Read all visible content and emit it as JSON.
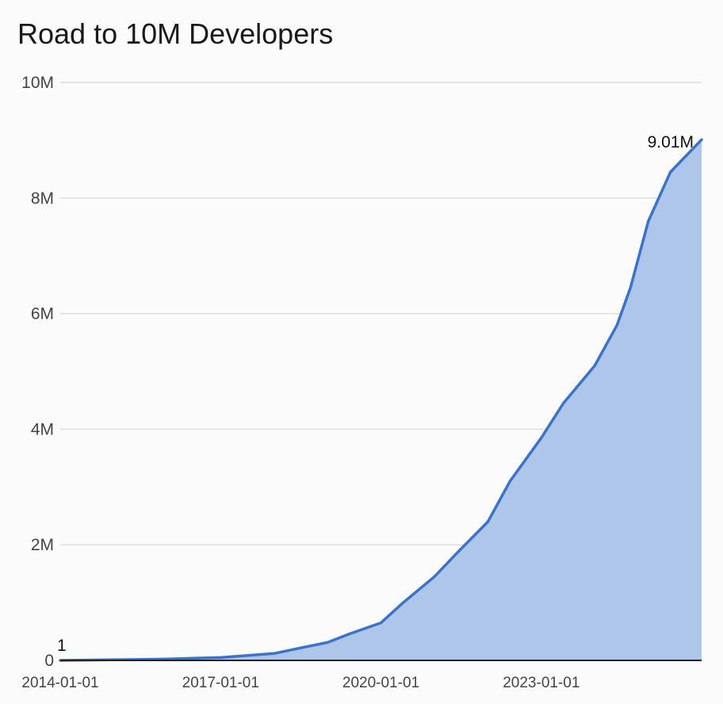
{
  "chart_data": {
    "type": "area",
    "title": "Road to 10M Developers",
    "xlabel": "",
    "ylabel": "",
    "x_axis": {
      "type": "date",
      "min": "2014-01-01",
      "max": "2025-12-31",
      "ticks": [
        "2014-01-01",
        "2017-01-01",
        "2020-01-01",
        "2023-01-01"
      ]
    },
    "y_axis": {
      "min": 0,
      "max": 10000000,
      "ticks": [
        0,
        2000000,
        4000000,
        6000000,
        8000000,
        10000000
      ],
      "tick_labels": [
        "0",
        "2M",
        "4M",
        "6M",
        "8M",
        "10M"
      ]
    },
    "grid": true,
    "legend": "none",
    "colors": {
      "line": "#3a73c8",
      "fill": "#aec6ea",
      "gridline": "#dedede",
      "baseline": "#222222"
    },
    "series": [
      {
        "points": [
          [
            "2014-01-01",
            1
          ],
          [
            "2015-06-01",
            15000
          ],
          [
            "2016-01-01",
            25000
          ],
          [
            "2016-06-01",
            35000
          ],
          [
            "2017-01-01",
            50000
          ],
          [
            "2017-06-01",
            80000
          ],
          [
            "2018-01-01",
            120000
          ],
          [
            "2018-06-01",
            200000
          ],
          [
            "2019-01-01",
            310000
          ],
          [
            "2019-06-01",
            460000
          ],
          [
            "2020-01-01",
            650000
          ],
          [
            "2020-06-01",
            1000000
          ],
          [
            "2021-01-01",
            1450000
          ],
          [
            "2021-06-01",
            1850000
          ],
          [
            "2022-01-01",
            2400000
          ],
          [
            "2022-06-01",
            3100000
          ],
          [
            "2023-01-01",
            3850000
          ],
          [
            "2023-06-01",
            4450000
          ],
          [
            "2024-01-01",
            5100000
          ],
          [
            "2024-06-01",
            5800000
          ],
          [
            "2024-09-01",
            6450000
          ],
          [
            "2025-01-01",
            7600000
          ],
          [
            "2025-06-01",
            8450000
          ],
          [
            "2025-12-31",
            9010000
          ]
        ]
      }
    ],
    "annotations": [
      {
        "label": "1",
        "x": "2014-01-01",
        "y": 1,
        "anchor": "start"
      },
      {
        "label": "9.01M",
        "x": "2025-12-31",
        "y": 9010000,
        "anchor": "end"
      }
    ]
  }
}
